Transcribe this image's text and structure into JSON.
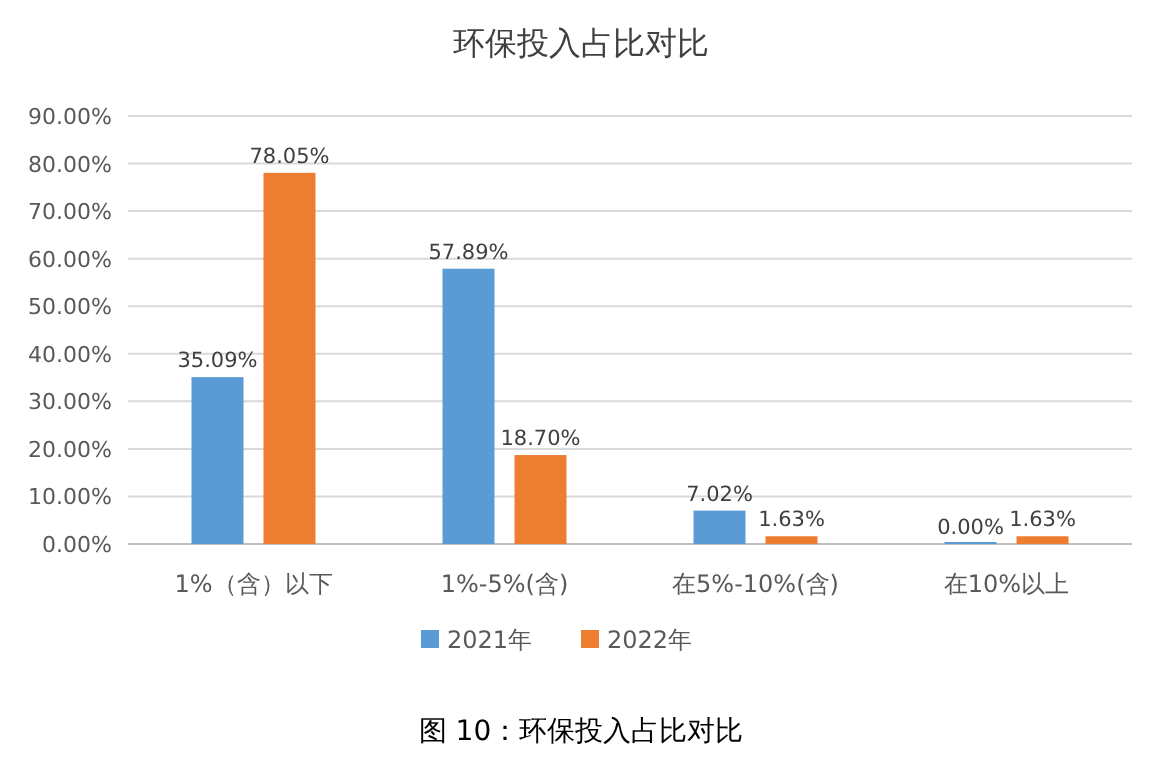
{
  "chart_data": {
    "type": "bar",
    "title": "环保投入占比对比",
    "categories": [
      "1%（含）以下",
      "1%-5%(含)",
      "在5%-10%(含)",
      "在10%以上"
    ],
    "series": [
      {
        "name": "2021年",
        "color": "#5b9bd5",
        "values": [
          35.09,
          57.89,
          7.02,
          0.0
        ],
        "value_labels": [
          "35.09%",
          "57.89%",
          "7.02%",
          "0.00%"
        ]
      },
      {
        "name": "2022年",
        "color": "#ed7d31",
        "values": [
          78.05,
          18.7,
          1.63,
          1.63
        ],
        "value_labels": [
          "78.05%",
          "18.70%",
          "1.63%",
          "1.63%"
        ]
      }
    ],
    "ylim": [
      0,
      90
    ],
    "yticks": [
      {
        "value": 0,
        "label": "0.00%"
      },
      {
        "value": 10,
        "label": "10.00%"
      },
      {
        "value": 20,
        "label": "20.00%"
      },
      {
        "value": 30,
        "label": "30.00%"
      },
      {
        "value": 40,
        "label": "40.00%"
      },
      {
        "value": 50,
        "label": "50.00%"
      },
      {
        "value": 60,
        "label": "60.00%"
      },
      {
        "value": 70,
        "label": "70.00%"
      },
      {
        "value": 80,
        "label": "80.00%"
      },
      {
        "value": 90,
        "label": "90.00%"
      }
    ],
    "grid": "y",
    "legend": "bottom",
    "annotations": [
      "图 10：环保投入占比对比"
    ]
  }
}
